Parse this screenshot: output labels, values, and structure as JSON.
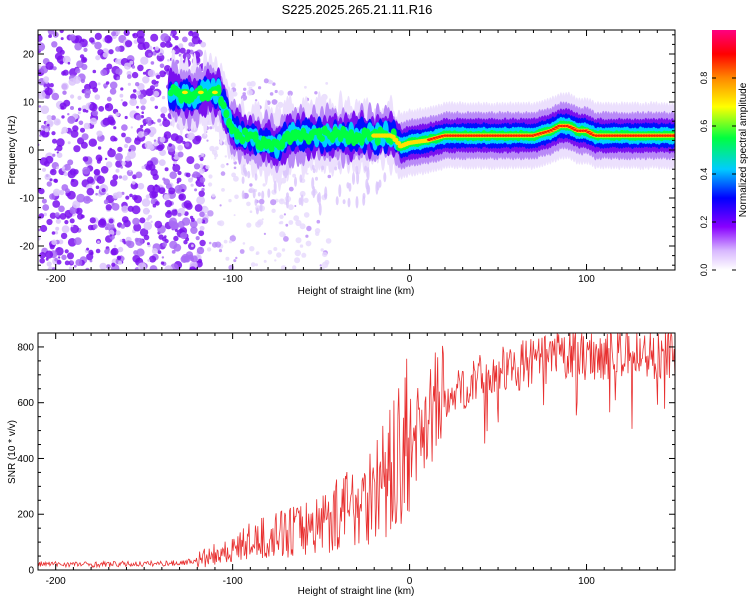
{
  "title": "S225.2025.265.21.11.R16",
  "chart_data": [
    {
      "type": "heatmap",
      "xlabel": "Height of straight line (km)",
      "ylabel": "Frequency (Hz)",
      "xlim": [
        -210,
        150
      ],
      "ylim": [
        -25,
        25
      ],
      "xticks": [
        -200,
        -100,
        0,
        100
      ],
      "yticks": [
        -20,
        -10,
        0,
        10,
        20
      ],
      "ridge": {
        "x": [
          -135,
          -125,
          -115,
          -108,
          -100,
          -95,
          -85,
          -75,
          -65,
          -55,
          -45,
          -35,
          -25,
          -18,
          -10,
          -5,
          0,
          10,
          20,
          30,
          40,
          50,
          60,
          70,
          80,
          85,
          90,
          95,
          100,
          105,
          110,
          120,
          130,
          140,
          150
        ],
        "freq": [
          12,
          11,
          12,
          12,
          4,
          3,
          2,
          1,
          3,
          3,
          3,
          3,
          3,
          3,
          3,
          0.8,
          1.5,
          2,
          3,
          3,
          3,
          3,
          3,
          3,
          4,
          5,
          5,
          4,
          4,
          3,
          3,
          3,
          3,
          3,
          3
        ]
      },
      "colorbar": {
        "label": "Normalized spectral amplitude",
        "range": [
          0,
          1
        ],
        "ticks": [
          0.0,
          0.2,
          0.4,
          0.6,
          0.8
        ]
      }
    },
    {
      "type": "line",
      "xlabel": "Height of straight line (km)",
      "ylabel": "SNR (10 * v/v)",
      "xlim": [
        -210,
        150
      ],
      "ylim": [
        0,
        850
      ],
      "xticks": [
        -200,
        -100,
        0,
        100
      ],
      "yticks": [
        0,
        200,
        400,
        600,
        800
      ],
      "color": "#e83030",
      "series": [
        {
          "name": "SNR",
          "x": [
            -210,
            -180,
            -150,
            -130,
            -120,
            -110,
            -100,
            -90,
            -80,
            -70,
            -60,
            -50,
            -40,
            -30,
            -20,
            -10,
            0,
            10,
            20,
            30,
            40,
            50,
            60,
            70,
            80,
            90,
            100,
            110,
            120,
            130,
            140,
            150
          ],
          "values": [
            22,
            20,
            22,
            25,
            35,
            50,
            70,
            95,
            110,
            125,
            140,
            160,
            190,
            230,
            270,
            330,
            450,
            560,
            610,
            650,
            690,
            710,
            730,
            745,
            760,
            770,
            770,
            775,
            775,
            775,
            770,
            770
          ]
        }
      ]
    }
  ]
}
